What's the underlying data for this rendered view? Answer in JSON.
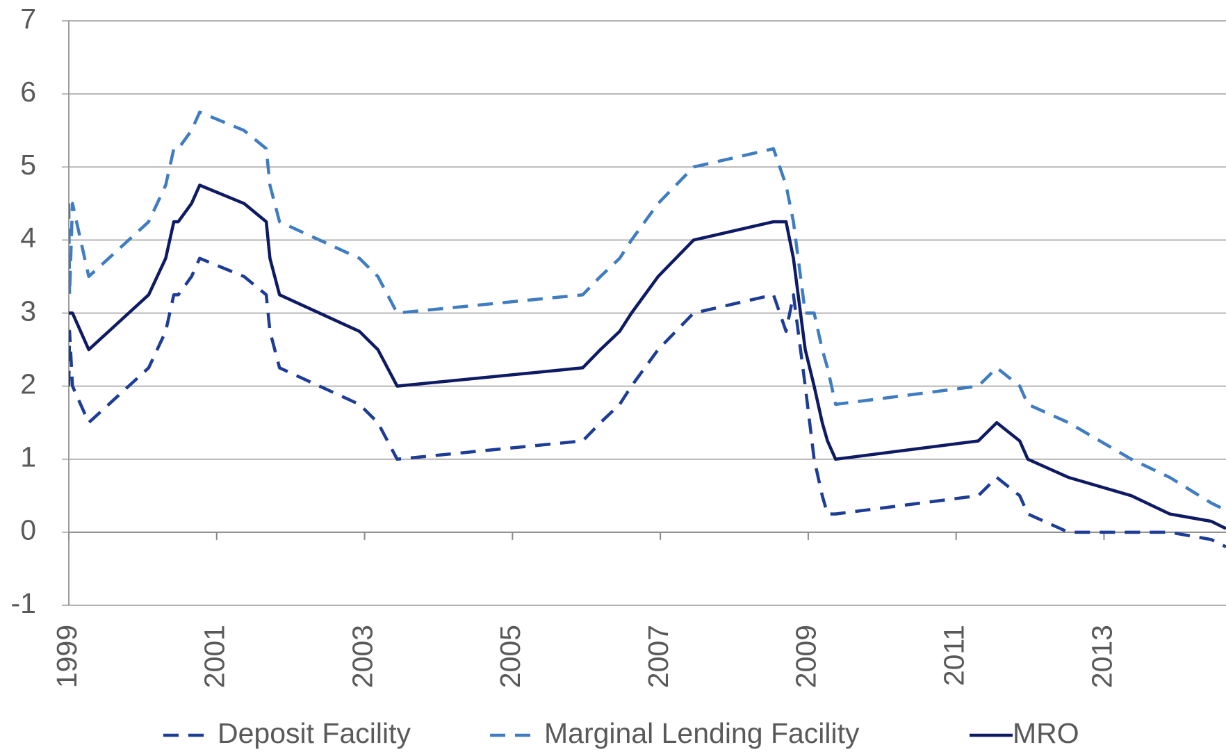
{
  "chart_data": {
    "type": "line",
    "x": [
      1999.0,
      1999.01,
      1999.05,
      1999.27,
      1999.81,
      2000.08,
      2000.31,
      2000.42,
      2000.48,
      2000.66,
      2000.77,
      2001.37,
      2001.67,
      2001.72,
      2001.85,
      2002.93,
      2003.18,
      2003.44,
      2005.95,
      2006.19,
      2006.45,
      2006.61,
      2006.97,
      2007.45,
      2008.53,
      2008.7,
      2008.8,
      2008.96,
      2009.08,
      2009.19,
      2009.26,
      2009.37,
      2011.3,
      2011.55,
      2011.86,
      2011.97,
      2012.52,
      2013.37,
      2013.89,
      2014.45,
      2014.65
    ],
    "series": [
      {
        "name": "Deposit Facility",
        "color": "#1c3c96",
        "dash": true,
        "values": [
          2.0,
          2.75,
          2.0,
          1.5,
          2.0,
          2.25,
          2.75,
          3.25,
          3.25,
          3.5,
          3.75,
          3.5,
          3.25,
          2.75,
          2.25,
          1.75,
          1.5,
          1.0,
          1.25,
          1.5,
          1.75,
          2.0,
          2.5,
          3.0,
          3.25,
          2.75,
          3.25,
          2.0,
          1.0,
          0.5,
          0.25,
          0.25,
          0.5,
          0.75,
          0.5,
          0.25,
          0.0,
          0.0,
          0.0,
          -0.1,
          -0.2
        ]
      },
      {
        "name": "Marginal Lending Facility",
        "color": "#3f7cc2",
        "dash": true,
        "values": [
          4.5,
          3.25,
          4.5,
          3.5,
          4.0,
          4.25,
          4.75,
          5.25,
          5.25,
          5.5,
          5.75,
          5.5,
          5.25,
          4.75,
          4.25,
          3.75,
          3.5,
          3.0,
          3.25,
          3.5,
          3.75,
          4.0,
          4.5,
          5.0,
          5.25,
          4.75,
          4.25,
          3.0,
          3.0,
          2.5,
          2.25,
          1.75,
          2.0,
          2.25,
          2.0,
          1.75,
          1.5,
          1.0,
          0.75,
          0.4,
          0.3
        ]
      },
      {
        "name": "MRO",
        "color": "#0e1a63",
        "dash": false,
        "values": [
          3.0,
          3.0,
          3.0,
          2.5,
          3.0,
          3.25,
          3.75,
          4.25,
          4.25,
          4.5,
          4.75,
          4.5,
          4.25,
          3.75,
          3.25,
          2.75,
          2.5,
          2.0,
          2.25,
          2.5,
          2.75,
          3.0,
          3.5,
          4.0,
          4.25,
          4.25,
          3.75,
          2.5,
          2.0,
          1.5,
          1.25,
          1.0,
          1.25,
          1.5,
          1.25,
          1.0,
          0.75,
          0.5,
          0.25,
          0.15,
          0.05
        ]
      }
    ],
    "xlim": [
      1999,
      2014.65
    ],
    "xticks": [
      1999,
      2001,
      2003,
      2005,
      2007,
      2009,
      2011,
      2013
    ],
    "ylim": [
      -1,
      7
    ],
    "yticks": [
      -1,
      0,
      1,
      2,
      3,
      4,
      5,
      6,
      7
    ],
    "grid": true,
    "legend": "bottom"
  }
}
